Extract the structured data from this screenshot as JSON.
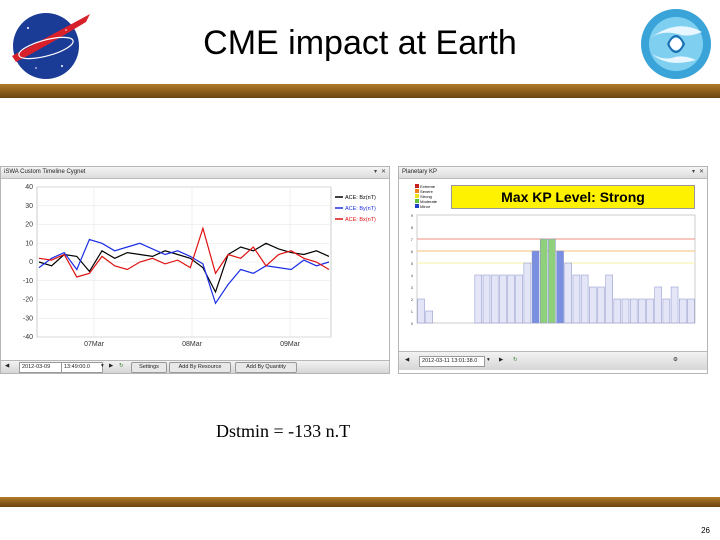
{
  "slide": {
    "title": "CME impact at Earth",
    "dst_text": "Dstmin = -133 n.T",
    "page_number": "26",
    "band_color": "#8a5a1a"
  },
  "left_panel": {
    "title": "iSWA Custom Timeline Cygnet",
    "y_ticks": [
      "40",
      "30",
      "20",
      "10",
      "0",
      "-10",
      "-20",
      "-30",
      "-40"
    ],
    "x_ticks": [
      "07Mar",
      "08Mar",
      "09Mar"
    ],
    "legend": [
      "ACE: Bz(nT)",
      "ACE: By(nT)",
      "ACE: Bx(nT)"
    ],
    "legend_colors": [
      "#000000",
      "#1a2ee6",
      "#e01010"
    ],
    "toolbar": {
      "date_value": "2012-03-09",
      "time_value": "13:49:00.0",
      "settings_label": "Settings",
      "add_resource_label": "Add By Resource",
      "add_quantity_label": "Add By Quantity"
    }
  },
  "right_panel": {
    "title": "Planetary KP",
    "banner": "Max KP Level: Strong",
    "legend": [
      "Extreme",
      "Severe",
      "Strong",
      "Moderate",
      "Minor"
    ],
    "legend_colors": [
      "#c81e1e",
      "#f08020",
      "#f0e020",
      "#60c040",
      "#2040c8"
    ],
    "banner_color": "#fff200",
    "toolbar": {
      "date_value": "2012-03-11 13:01:38.0"
    }
  },
  "chart_data": [
    {
      "type": "line",
      "title": "iSWA Custom Timeline Cygnet",
      "x_ticks": [
        "07Mar",
        "08Mar",
        "09Mar"
      ],
      "ylim": [
        -40,
        40
      ],
      "series": [
        {
          "name": "ACE: Bz(nT)",
          "color": "#000000",
          "values": [
            0,
            -2,
            4,
            3,
            -5,
            6,
            2,
            5,
            4,
            3,
            6,
            4,
            2,
            -3,
            -16,
            4,
            8,
            6,
            10,
            7,
            5,
            4,
            6,
            3
          ]
        },
        {
          "name": "ACE: By(nT)",
          "color": "#1a2ee6",
          "values": [
            -3,
            2,
            5,
            -4,
            12,
            10,
            6,
            8,
            10,
            7,
            4,
            6,
            3,
            -1,
            -22,
            -12,
            -4,
            -6,
            -2,
            -3,
            -4,
            1,
            -2,
            0
          ]
        },
        {
          "name": "ACE: Bx(nT)",
          "color": "#e01010",
          "values": [
            2,
            1,
            4,
            -8,
            -6,
            3,
            -2,
            -4,
            0,
            2,
            -1,
            1,
            -3,
            18,
            -6,
            4,
            2,
            8,
            -2,
            4,
            6,
            2,
            0,
            -4
          ]
        }
      ],
      "grid": true
    },
    {
      "type": "bar",
      "title": "Max KP Level: Strong",
      "ylim": [
        0,
        9
      ],
      "values": [
        2,
        1,
        0,
        0,
        0,
        0,
        0,
        4,
        4,
        4,
        4,
        4,
        4,
        5,
        6,
        7,
        7,
        6,
        5,
        4,
        4,
        3,
        3,
        4,
        2,
        2,
        2,
        2,
        2,
        3,
        2,
        3,
        2,
        2
      ]
    }
  ]
}
